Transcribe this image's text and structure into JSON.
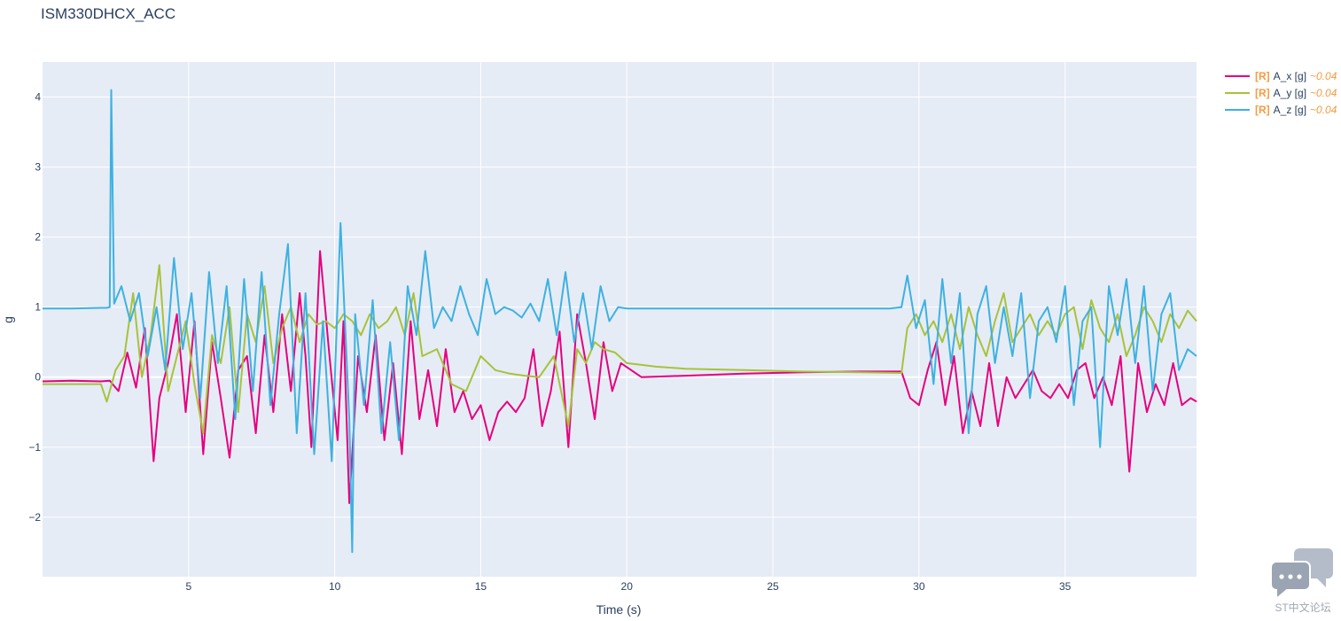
{
  "chart_data": {
    "type": "line",
    "title": "ISM330DHCX_ACC",
    "xlabel": "Time (s)",
    "ylabel": "g",
    "xlim": [
      0.0,
      39.5
    ],
    "ylim": [
      -2.85,
      4.5
    ],
    "x_ticks": [
      5,
      10,
      15,
      20,
      25,
      30,
      35
    ],
    "y_ticks": [
      -2,
      -1,
      0,
      1,
      2,
      3,
      4
    ],
    "x_tick_labels": [
      "5",
      "10",
      "15",
      "20",
      "25",
      "30",
      "35"
    ],
    "y_tick_labels": [
      "−2",
      "−1",
      "0",
      "1",
      "2",
      "3",
      "4"
    ],
    "grid": true,
    "legend_position": "top-right",
    "series": [
      {
        "name": "A_x [g]",
        "legend_prefix": "[R]",
        "legend_suffix": "~0.04",
        "color": "#e6007e",
        "x": [
          0,
          1,
          2,
          2.3,
          2.6,
          2.9,
          3.2,
          3.5,
          3.8,
          4.0,
          4.3,
          4.6,
          4.9,
          5.2,
          5.5,
          5.8,
          6.1,
          6.4,
          6.7,
          7.0,
          7.3,
          7.6,
          7.9,
          8.2,
          8.5,
          8.8,
          9.0,
          9.2,
          9.5,
          9.8,
          10.1,
          10.3,
          10.5,
          10.8,
          11.1,
          11.4,
          11.7,
          12.0,
          12.3,
          12.6,
          12.9,
          13.2,
          13.5,
          13.8,
          14.1,
          14.4,
          14.7,
          15.0,
          15.3,
          15.6,
          15.9,
          16.2,
          16.5,
          16.8,
          17.1,
          17.4,
          17.7,
          18.0,
          18.3,
          18.6,
          18.9,
          19.2,
          19.5,
          19.8,
          20.5,
          22,
          24,
          26,
          28,
          29.4,
          29.7,
          30.0,
          30.3,
          30.6,
          30.9,
          31.2,
          31.5,
          31.8,
          32.1,
          32.4,
          32.7,
          33.0,
          33.3,
          33.6,
          33.9,
          34.2,
          34.5,
          34.8,
          35.1,
          35.4,
          35.7,
          36.0,
          36.3,
          36.6,
          36.9,
          37.2,
          37.5,
          37.8,
          38.1,
          38.4,
          38.7,
          39.0,
          39.3,
          39.5
        ],
        "values": [
          -0.06,
          -0.05,
          -0.06,
          -0.05,
          -0.2,
          0.35,
          -0.15,
          0.7,
          -1.2,
          -0.3,
          0.2,
          0.9,
          -0.5,
          0.8,
          -1.1,
          0.5,
          -0.3,
          -1.15,
          0.1,
          0.3,
          -0.8,
          0.6,
          -0.5,
          0.9,
          -0.2,
          1.2,
          0.3,
          -1.0,
          1.8,
          0.4,
          -0.9,
          0.8,
          -1.8,
          0.3,
          -0.5,
          0.6,
          -0.9,
          0.2,
          -1.1,
          0.8,
          -0.6,
          0.1,
          -0.7,
          0.4,
          -0.5,
          -0.2,
          -0.6,
          -0.4,
          -0.9,
          -0.5,
          -0.35,
          -0.5,
          -0.3,
          0.4,
          -0.7,
          -0.2,
          0.65,
          -1.0,
          0.9,
          0.2,
          -0.6,
          0.5,
          -0.2,
          0.2,
          0.0,
          0.02,
          0.05,
          0.07,
          0.08,
          0.08,
          -0.3,
          -0.4,
          0.1,
          0.5,
          -0.4,
          0.3,
          -0.8,
          -0.2,
          -0.7,
          0.2,
          -0.7,
          0.0,
          -0.3,
          -0.1,
          0.1,
          -0.2,
          -0.3,
          -0.1,
          -0.3,
          0.1,
          0.2,
          -0.3,
          0.0,
          -0.4,
          0.3,
          -1.35,
          0.2,
          -0.5,
          -0.1,
          -0.4,
          0.2,
          -0.4,
          -0.3,
          -0.35
        ]
      },
      {
        "name": "A_y [g]",
        "legend_prefix": "[R]",
        "legend_suffix": "~0.04",
        "color": "#a8c23a",
        "x": [
          0,
          1,
          2,
          2.2,
          2.5,
          2.8,
          3.1,
          3.4,
          3.7,
          4.0,
          4.3,
          4.6,
          4.9,
          5.2,
          5.5,
          5.8,
          6.1,
          6.4,
          6.7,
          7.0,
          7.3,
          7.6,
          7.9,
          8.2,
          8.5,
          8.8,
          9.1,
          9.4,
          9.7,
          10.0,
          10.3,
          10.6,
          10.9,
          11.2,
          11.5,
          11.8,
          12.1,
          12.4,
          12.7,
          13.0,
          13.5,
          14.0,
          14.5,
          15.0,
          15.5,
          16.0,
          16.5,
          17.0,
          17.5,
          18.0,
          18.3,
          18.6,
          18.9,
          19.2,
          19.6,
          20.0,
          21,
          22,
          24,
          26,
          28,
          29.4,
          29.6,
          29.9,
          30.2,
          30.5,
          30.8,
          31.1,
          31.4,
          31.7,
          32.0,
          32.3,
          32.6,
          32.9,
          33.2,
          33.5,
          33.8,
          34.1,
          34.4,
          34.7,
          35.0,
          35.3,
          35.6,
          35.9,
          36.2,
          36.5,
          36.8,
          37.1,
          37.4,
          37.7,
          38.0,
          38.3,
          38.6,
          38.9,
          39.2,
          39.5
        ],
        "values": [
          -0.1,
          -0.1,
          -0.1,
          -0.35,
          0.1,
          0.3,
          1.2,
          0.0,
          0.6,
          1.6,
          -0.2,
          0.3,
          0.8,
          -0.1,
          -0.8,
          0.6,
          0.2,
          1.0,
          -0.5,
          0.9,
          0.5,
          1.3,
          0.2,
          0.7,
          1.0,
          0.5,
          0.9,
          0.75,
          0.8,
          0.7,
          0.9,
          0.8,
          0.6,
          0.9,
          0.7,
          0.8,
          1.0,
          0.6,
          1.2,
          0.3,
          0.4,
          -0.1,
          -0.2,
          0.3,
          0.1,
          0.05,
          0.02,
          0.0,
          0.3,
          -0.7,
          0.4,
          0.2,
          0.5,
          0.4,
          0.35,
          0.2,
          0.15,
          0.12,
          0.1,
          0.08,
          0.07,
          0.06,
          0.7,
          0.9,
          0.6,
          0.8,
          0.5,
          0.9,
          0.4,
          1.0,
          0.6,
          0.3,
          0.8,
          1.2,
          0.5,
          0.7,
          0.9,
          0.6,
          0.8,
          0.6,
          0.9,
          1.0,
          0.4,
          1.1,
          0.7,
          0.5,
          0.9,
          0.3,
          0.6,
          1.0,
          0.8,
          0.5,
          0.9,
          0.7,
          0.95,
          0.8
        ]
      },
      {
        "name": "A_z [g]",
        "legend_prefix": "[R]",
        "legend_suffix": "~0.04",
        "color": "#3eb1e0",
        "x": [
          0,
          1,
          2,
          2.2,
          2.3,
          2.35,
          2.45,
          2.7,
          3.0,
          3.3,
          3.6,
          3.9,
          4.2,
          4.5,
          4.8,
          5.1,
          5.4,
          5.7,
          6.0,
          6.3,
          6.6,
          6.9,
          7.2,
          7.5,
          7.8,
          8.1,
          8.4,
          8.7,
          9.0,
          9.3,
          9.6,
          9.9,
          10.2,
          10.5,
          10.6,
          10.7,
          11.0,
          11.3,
          11.6,
          11.9,
          12.2,
          12.5,
          12.8,
          13.1,
          13.4,
          13.7,
          14.0,
          14.3,
          14.6,
          14.9,
          15.2,
          15.5,
          15.8,
          16.1,
          16.4,
          16.7,
          17.0,
          17.3,
          17.6,
          17.9,
          18.2,
          18.5,
          18.8,
          19.1,
          19.4,
          19.7,
          20.0,
          21,
          23,
          25,
          27,
          29.0,
          29.4,
          29.6,
          29.9,
          30.2,
          30.5,
          30.8,
          31.1,
          31.4,
          31.7,
          32.0,
          32.3,
          32.6,
          32.9,
          33.2,
          33.5,
          33.8,
          34.1,
          34.4,
          34.7,
          35.0,
          35.3,
          35.6,
          35.9,
          36.2,
          36.5,
          36.8,
          37.1,
          37.4,
          37.7,
          38.0,
          38.3,
          38.6,
          38.9,
          39.2,
          39.5
        ],
        "values": [
          0.98,
          0.98,
          0.99,
          0.99,
          1.0,
          4.1,
          1.05,
          1.3,
          0.8,
          1.2,
          0.3,
          1.0,
          0.1,
          1.7,
          0.4,
          1.2,
          -0.3,
          1.5,
          0.2,
          1.3,
          -0.6,
          1.4,
          -0.2,
          1.5,
          -0.4,
          0.9,
          1.9,
          -0.8,
          1.2,
          -1.1,
          0.8,
          -1.2,
          2.2,
          -0.6,
          -2.5,
          0.9,
          -0.4,
          1.1,
          -0.8,
          0.5,
          -0.9,
          1.3,
          0.6,
          1.8,
          0.7,
          1.0,
          0.8,
          1.3,
          0.9,
          0.6,
          1.4,
          0.9,
          1.0,
          0.95,
          0.85,
          1.05,
          0.8,
          1.4,
          0.6,
          1.5,
          0.5,
          1.2,
          0.4,
          1.3,
          0.8,
          1.0,
          0.98,
          0.98,
          0.98,
          0.98,
          0.98,
          0.98,
          1.0,
          1.45,
          0.7,
          1.1,
          -0.1,
          1.4,
          0.2,
          1.2,
          -0.8,
          0.9,
          1.3,
          0.2,
          1.0,
          0.3,
          1.2,
          -0.3,
          0.8,
          1.0,
          0.5,
          1.3,
          -0.4,
          0.8,
          1.0,
          -1.0,
          1.3,
          0.6,
          1.4,
          0.2,
          1.3,
          -0.2,
          0.9,
          1.2,
          0.1,
          0.4,
          0.3
        ]
      }
    ]
  },
  "watermark": {
    "label": "ST中文论坛",
    "icon": "chat-bubbles-icon"
  }
}
